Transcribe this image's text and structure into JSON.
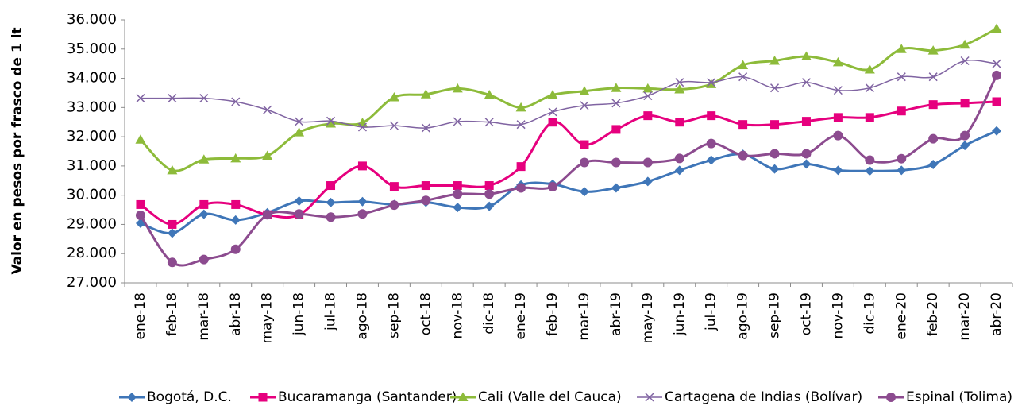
{
  "chart_data": {
    "type": "line",
    "y_axis_label": "Valor en pesos por frasco de 1 lt",
    "categories": [
      "ene-18",
      "feb-18",
      "mar-18",
      "abr-18",
      "may-18",
      "jun-18",
      "jul-18",
      "ago-18",
      "sep-18",
      "oct-18",
      "nov-18",
      "dic-18",
      "ene-19",
      "feb-19",
      "mar-19",
      "abr-19",
      "may-19",
      "jun-19",
      "jul-19",
      "ago-19",
      "sep-19",
      "oct-19",
      "nov-19",
      "dic-19",
      "ene-20",
      "feb-20",
      "mar-20",
      "abr-20"
    ],
    "series": [
      {
        "name": "Bogotá, D.C.",
        "color": "#3f76b8",
        "marker": "diamond",
        "values": [
          29040,
          28700,
          29350,
          29150,
          29400,
          29800,
          29750,
          29780,
          29680,
          29760,
          29580,
          29620,
          30350,
          30380,
          30120,
          30250,
          30470,
          30850,
          31200,
          31400,
          30900,
          31070,
          30850,
          30830,
          30850,
          31050,
          31700,
          32200
        ]
      },
      {
        "name": "Bucaramanga (Santander)",
        "color": "#e6007e",
        "marker": "square",
        "values": [
          29680,
          29000,
          29680,
          29680,
          29330,
          29330,
          30330,
          31000,
          30300,
          30330,
          30330,
          30330,
          30980,
          32500,
          31730,
          32250,
          32720,
          32500,
          32720,
          32420,
          32420,
          32530,
          32660,
          32660,
          32880,
          33100,
          33150,
          33200
        ]
      },
      {
        "name": "Cali (Valle del Cauca)",
        "color": "#8dbb3a",
        "marker": "triangle",
        "values": [
          31900,
          30850,
          31220,
          31260,
          31350,
          32150,
          32450,
          32480,
          33350,
          33450,
          33650,
          33430,
          33000,
          33430,
          33560,
          33670,
          33650,
          33620,
          33800,
          34450,
          34600,
          34750,
          34550,
          34300,
          35000,
          34950,
          35150,
          35700
        ]
      },
      {
        "name": "Cartagena de Indias (Bolívar)",
        "color": "#8064a2",
        "marker": "x",
        "values": [
          33320,
          33320,
          33320,
          33200,
          32920,
          32520,
          32540,
          32330,
          32380,
          32300,
          32520,
          32500,
          32420,
          32850,
          33070,
          33150,
          33400,
          33860,
          33860,
          34050,
          33670,
          33860,
          33590,
          33670,
          34050,
          34050,
          34600,
          34500
        ]
      },
      {
        "name": "Espinal (Tolima)",
        "color": "#8c4b8f",
        "marker": "circle",
        "values": [
          29310,
          27700,
          27800,
          28150,
          29330,
          29360,
          29250,
          29360,
          29660,
          29820,
          30040,
          30040,
          30250,
          30290,
          31120,
          31120,
          31120,
          31260,
          31770,
          31360,
          31420,
          31420,
          32040,
          31200,
          31250,
          31930,
          32040,
          34100
        ]
      }
    ],
    "ylim": [
      27000,
      36000
    ],
    "yticks": [
      {
        "value": 27000,
        "label": "27.000"
      },
      {
        "value": 28000,
        "label": "28.000"
      },
      {
        "value": 29000,
        "label": "29.000"
      },
      {
        "value": 30000,
        "label": "30.000"
      },
      {
        "value": 31000,
        "label": "31.000"
      },
      {
        "value": 32000,
        "label": "32.000"
      },
      {
        "value": 33000,
        "label": "33.000"
      },
      {
        "value": 34000,
        "label": "34.000"
      },
      {
        "value": 35000,
        "label": "35.000"
      },
      {
        "value": 36000,
        "label": "36.000"
      }
    ],
    "grid": false,
    "legend": "bottom"
  }
}
